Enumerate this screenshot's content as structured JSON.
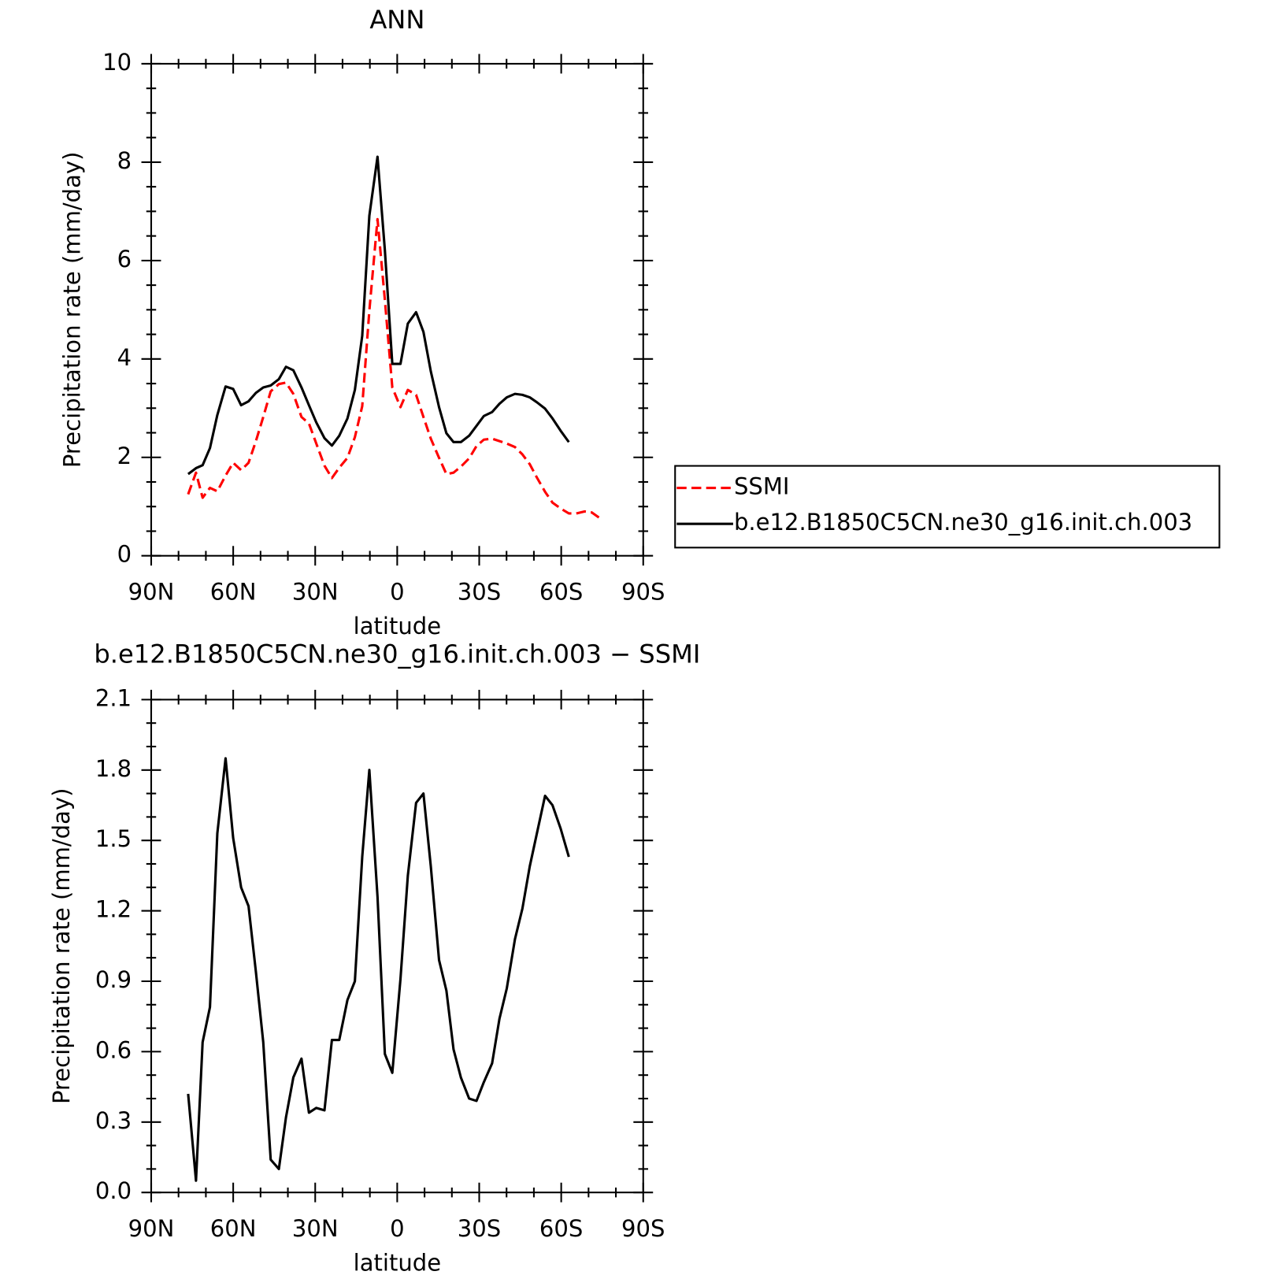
{
  "chart_data": [
    {
      "type": "line",
      "title": "ANN",
      "x_label": "latitude",
      "y_label": "Precipitation rate (mm/day)",
      "xlim": [
        90,
        -90
      ],
      "xticks": [
        {
          "value": 90,
          "label": "90N"
        },
        {
          "value": 60,
          "label": "60N"
        },
        {
          "value": 30,
          "label": "30N"
        },
        0,
        {
          "value": -30,
          "label": "30S"
        },
        {
          "value": -60,
          "label": "60S"
        },
        {
          "value": -90,
          "label": "90S"
        }
      ],
      "ylim": [
        0,
        10
      ],
      "yticks": [
        0,
        2,
        4,
        6,
        8,
        10
      ],
      "legend": "right",
      "x": [
        76.5,
        73.6,
        71.2,
        68.5,
        65.8,
        62.8,
        60,
        57.1,
        54.4,
        51.7,
        49,
        46.3,
        43.3,
        40.7,
        38,
        35,
        32.3,
        29.6,
        26.6,
        23.9,
        21.2,
        18.2,
        15.5,
        12.8,
        10.2,
        7.2,
        4.5,
        1.8,
        -1.2,
        -3.9,
        -6.9,
        -9.6,
        -12.3,
        -15.3,
        -18,
        -20.6,
        -23.3,
        -26.3,
        -29,
        -31.7,
        -34.7,
        -37.4,
        -40.1,
        -43.1,
        -45.8,
        -48.5,
        -51.1,
        -54.1,
        -56.8,
        -59.8,
        -62.8,
        -65.5,
        -68.5,
        -71.2,
        -74.2
      ],
      "series": [
        {
          "name": "SSMI",
          "color": "#ff0000",
          "line_style": "dashed",
          "values": [
            1.25,
            1.69,
            1.18,
            1.38,
            1.31,
            1.63,
            1.89,
            1.74,
            1.89,
            2.33,
            2.82,
            3.34,
            3.49,
            3.52,
            3.29,
            2.82,
            2.69,
            2.28,
            1.83,
            1.58,
            1.79,
            1.99,
            2.41,
            3.04,
            4.98,
            6.84,
            5.2,
            3.42,
            3.02,
            3.37,
            3.27,
            2.82,
            2.38,
            1.99,
            1.66,
            1.69,
            1.81,
            1.98,
            2.23,
            2.36,
            2.38,
            2.33,
            2.28,
            2.21,
            2.06,
            1.86,
            1.59,
            1.3,
            1.08,
            0.96,
            0.86,
            0.86,
            0.9,
            0.88,
            0.76
          ]
        },
        {
          "name": "b.e12.B1850C5CN.ne30_g16.init.ch.003",
          "color": "#000000",
          "line_style": "solid",
          "values": [
            1.66,
            1.78,
            1.84,
            2.19,
            2.86,
            3.44,
            3.39,
            3.06,
            3.14,
            3.31,
            3.42,
            3.46,
            3.59,
            3.84,
            3.77,
            3.42,
            3.06,
            2.71,
            2.39,
            2.24,
            2.44,
            2.79,
            3.37,
            4.47,
            6.91,
            8.11,
            6.21,
            3.9,
            3.9,
            4.72,
            4.95,
            4.55,
            3.75,
            3.02,
            2.49,
            2.31,
            2.31,
            2.44,
            2.64,
            2.84,
            2.92,
            3.09,
            3.22,
            3.29,
            3.27,
            3.22,
            3.12,
            2.99,
            2.79,
            2.54,
            2.31,
            null,
            null,
            null,
            null
          ]
        }
      ]
    },
    {
      "type": "line",
      "title": "b.e12.B1850C5CN.ne30_g16.init.ch.003 − SSMI",
      "x_label": "latitude",
      "y_label": "Precipitation rate (mm/day)",
      "xlim": [
        90,
        -90
      ],
      "xticks": [
        {
          "value": 90,
          "label": "90N"
        },
        {
          "value": 60,
          "label": "60N"
        },
        {
          "value": 30,
          "label": "30N"
        },
        0,
        {
          "value": -30,
          "label": "30S"
        },
        {
          "value": -60,
          "label": "60S"
        },
        {
          "value": -90,
          "label": "90S"
        }
      ],
      "ylim": [
        0,
        2.1
      ],
      "yticks": [
        {
          "value": 0,
          "label": "0.0"
        },
        0.3,
        0.6,
        0.9,
        1.2,
        1.5,
        1.8,
        2.1
      ],
      "x": [
        76.5,
        73.6,
        71.2,
        68.5,
        65.8,
        62.8,
        60,
        57.1,
        54.4,
        51.7,
        49,
        46.3,
        43.3,
        40.7,
        38,
        35,
        32.3,
        29.6,
        26.6,
        23.9,
        21.2,
        18.2,
        15.5,
        12.8,
        10.2,
        7.2,
        4.5,
        1.8,
        -1.2,
        -3.9,
        -6.9,
        -9.6,
        -12.3,
        -15.3,
        -18,
        -20.6,
        -23.3,
        -26.3,
        -29,
        -31.7,
        -34.7,
        -37.4,
        -40.1,
        -43.1,
        -45.8,
        -48.5,
        -51.1,
        -54.1,
        -56.8,
        -59.8,
        -62.8
      ],
      "series": [
        {
          "color": "#000000",
          "line_style": "solid",
          "values": [
            0.42,
            0.05,
            0.64,
            0.79,
            1.53,
            1.85,
            1.51,
            1.3,
            1.22,
            0.94,
            0.64,
            0.14,
            0.1,
            0.32,
            0.49,
            0.57,
            0.34,
            0.36,
            0.35,
            0.65,
            0.65,
            0.82,
            0.9,
            1.43,
            1.8,
            1.26,
            0.59,
            0.51,
            0.91,
            1.35,
            1.66,
            1.7,
            1.39,
            0.99,
            0.86,
            0.61,
            0.49,
            0.4,
            0.39,
            0.47,
            0.55,
            0.74,
            0.87,
            1.08,
            1.21,
            1.39,
            1.53,
            1.69,
            1.65,
            1.55,
            1.43
          ]
        }
      ]
    }
  ]
}
